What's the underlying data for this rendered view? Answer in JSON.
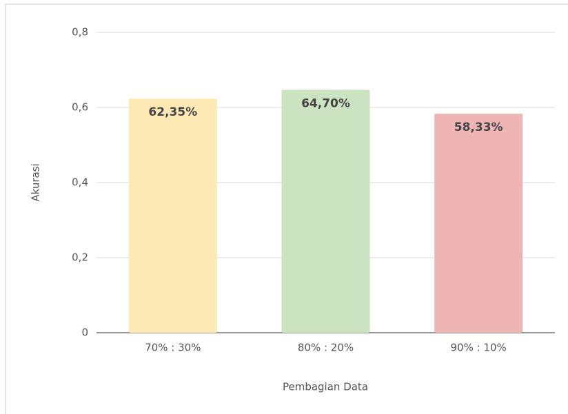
{
  "chart_data": {
    "type": "bar",
    "categories": [
      "70% : 30%",
      "80% : 20%",
      "90% : 10%"
    ],
    "values": [
      0.6235,
      0.647,
      0.5833
    ],
    "value_labels": [
      "62,35%",
      "64,70%",
      "58,33%"
    ],
    "colors": [
      "#fde9b4",
      "#cbe3c0",
      "#efb5b5"
    ],
    "x_label": "Pembagian Data",
    "y_label": "Akurasi",
    "ylim": [
      0,
      0.8
    ],
    "yticks": [
      0,
      {
        "value": 0.2,
        "label": "0,2"
      },
      {
        "value": 0.4,
        "label": "0,4"
      },
      {
        "value": 0.6,
        "label": "0,6"
      },
      {
        "value": 0.8,
        "label": "0,8"
      }
    ],
    "grid": true
  }
}
